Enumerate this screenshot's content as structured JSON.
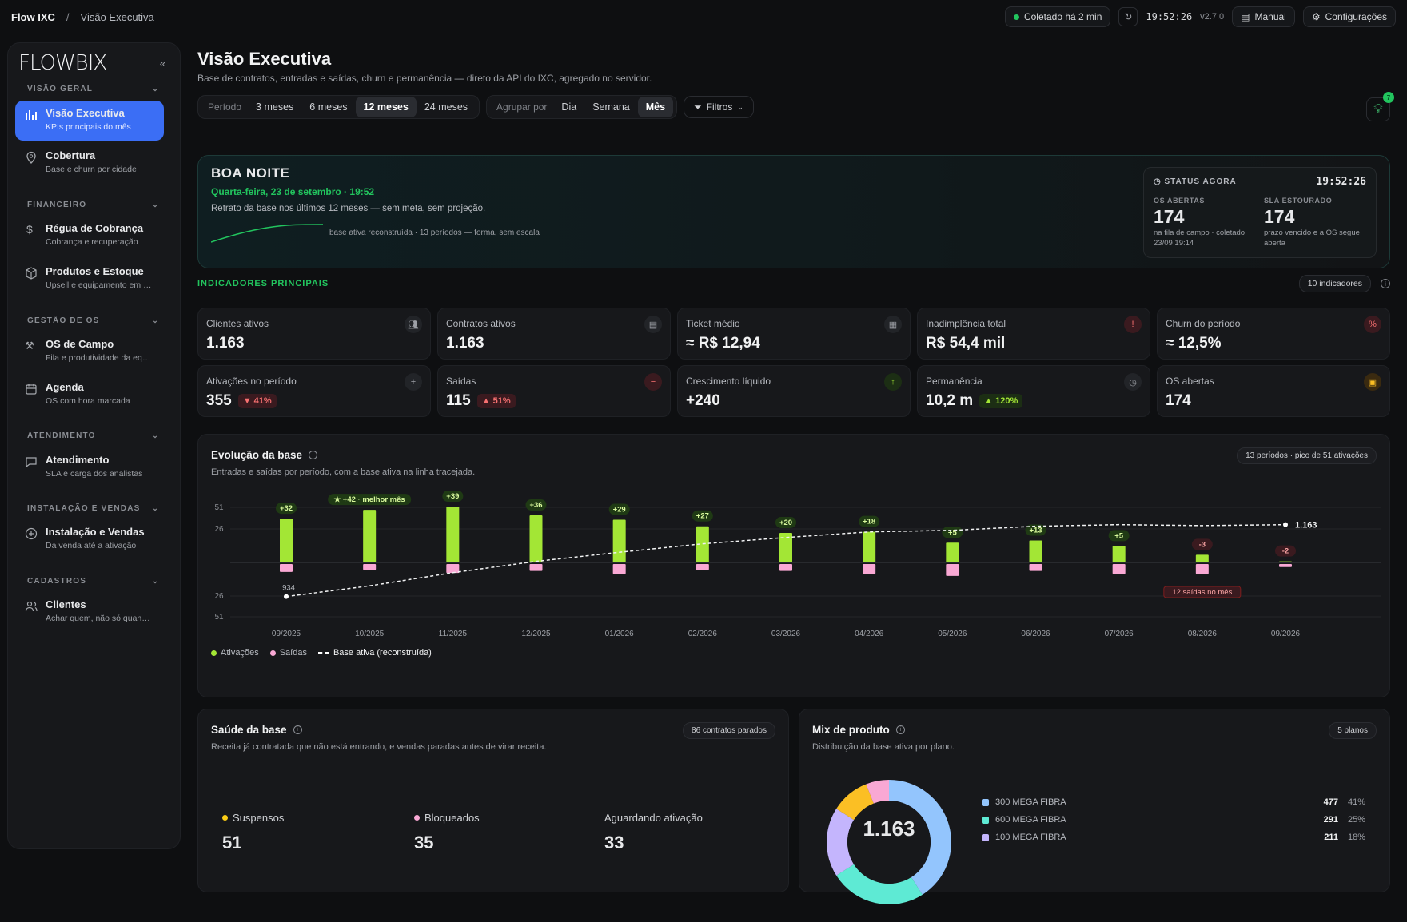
{
  "topbar": {
    "app": "Flow IXC",
    "sep": "/",
    "page": "Visão Executiva",
    "collected": "Coletado há 2 min",
    "clock": "19:52:26",
    "version": "v2.7.0",
    "manual": "Manual",
    "settings": "Configurações"
  },
  "sidebar": {
    "logo": "FLOWBIX",
    "sections": [
      "VISÃO GERAL",
      "FINANCEIRO",
      "GESTÃO DE OS",
      "ATENDIMENTO",
      "INSTALAÇÃO E VENDAS",
      "CADASTROS"
    ],
    "items": [
      {
        "label": "Visão Executiva",
        "sub": "KPIs principais do mês",
        "icon": "bar-chart-icon",
        "active": true
      },
      {
        "label": "Cobertura",
        "sub": "Base e churn por cidade",
        "icon": "map-pin-icon"
      },
      {
        "label": "Régua de Cobrança",
        "sub": "Cobrança e recuperação",
        "icon": "dollar-icon"
      },
      {
        "label": "Produtos e Estoque",
        "sub": "Upsell e equipamento em …",
        "icon": "box-icon"
      },
      {
        "label": "OS de Campo",
        "sub": "Fila e produtividade da eq…",
        "icon": "wrench-icon"
      },
      {
        "label": "Agenda",
        "sub": "OS com hora marcada",
        "icon": "calendar-icon"
      },
      {
        "label": "Atendimento",
        "sub": "SLA e carga dos analistas",
        "icon": "chat-icon"
      },
      {
        "label": "Instalação e Vendas",
        "sub": "Da venda até a ativação",
        "icon": "plus-circle-icon"
      },
      {
        "label": "Clientes",
        "sub": "Achar quem, não só quan…",
        "icon": "users-icon"
      }
    ]
  },
  "header": {
    "title": "Visão Executiva",
    "subtitle": "Base de contratos, entradas e saídas, churn e permanência — direto da API do IXC, agregado no servidor."
  },
  "controls": {
    "period_label": "Período",
    "periods": [
      "3 meses",
      "6 meses",
      "12 meses",
      "24 meses"
    ],
    "period_selected": "12 meses",
    "group_label": "Agrupar por",
    "groups": [
      "Dia",
      "Semana",
      "Mês"
    ],
    "group_selected": "Mês",
    "filters": "Filtros",
    "tips_count": "7"
  },
  "hero": {
    "greeting": "BOA NOITE",
    "date": "Quarta-feira, 23 de setembro · 19:52",
    "desc": "Retrato da base nos últimos 12 meses — sem meta, sem projeção.",
    "spark_label": "base ativa reconstruída · 13 períodos — forma, sem escala",
    "status": {
      "title": "STATUS AGORA",
      "time": "19:52:26",
      "os_label": "OS ABERTAS",
      "os_value": "174",
      "os_sub": "na fila de campo · coletado 23/09 19:14",
      "sla_label": "SLA ESTOURADO",
      "sla_value": "174",
      "sla_sub": "prazo vencido e a OS segue aberta"
    }
  },
  "kpis": {
    "title": "INDICADORES PRINCIPAIS",
    "count": "10 indicadores",
    "items": [
      {
        "label": "Clientes ativos",
        "value": "1.163",
        "icon": "users-icon",
        "tone": ""
      },
      {
        "label": "Contratos ativos",
        "value": "1.163",
        "icon": "document-icon",
        "tone": ""
      },
      {
        "label": "Ticket médio",
        "value": "≈ R$ 12,94",
        "icon": "calculator-icon",
        "tone": ""
      },
      {
        "label": "Inadimplência total",
        "value": "R$ 54,4 mil",
        "icon": "alert-icon",
        "tone": "red"
      },
      {
        "label": "Churn do período",
        "value": "≈ 12,5%",
        "icon": "percent-icon",
        "tone": "red"
      },
      {
        "label": "Ativações no período",
        "value": "355",
        "delta": "▼ 41%",
        "delta_dir": "dn",
        "icon": "plus-circle-icon",
        "tone": ""
      },
      {
        "label": "Saídas",
        "value": "115",
        "delta": "▲ 51%",
        "delta_dir": "dn",
        "icon": "minus-circle-icon",
        "tone": "red"
      },
      {
        "label": "Crescimento líquido",
        "value": "+240",
        "icon": "arrow-up-icon",
        "tone": "green"
      },
      {
        "label": "Permanência",
        "value": "10,2 m",
        "delta": "▲ 120%",
        "delta_dir": "up",
        "icon": "clock-icon",
        "tone": ""
      },
      {
        "label": "OS abertas",
        "value": "174",
        "icon": "clipboard-icon",
        "tone": "amber"
      }
    ]
  },
  "evolution": {
    "title": "Evolução da base",
    "subtitle": "Entradas e saídas por período, com a base ativa na linha tracejada.",
    "badge": "13 períodos · pico de 51 ativações",
    "legend": [
      "Ativações",
      "Saídas",
      "Base ativa (reconstruída)"
    ],
    "best_label": "★ +42 · melhor mês",
    "exits_label": "12 saídas no mês"
  },
  "chart_data": {
    "type": "bar",
    "categories": [
      "09/2025",
      "10/2025",
      "11/2025",
      "12/2025",
      "01/2026",
      "02/2026",
      "03/2026",
      "04/2026",
      "05/2026",
      "06/2026",
      "07/2026",
      "08/2026",
      "09/2026"
    ],
    "series": [
      {
        "name": "Ativações",
        "values": [
          40,
          48,
          51,
          43,
          39,
          33,
          27,
          28,
          18,
          20,
          15,
          7,
          1
        ]
      },
      {
        "name": "Saídas",
        "values": [
          8,
          6,
          9,
          7,
          10,
          6,
          7,
          10,
          12,
          7,
          10,
          10,
          3
        ]
      },
      {
        "name": "Base ativa (reconstruída)",
        "values": [
          934,
          968,
          1010,
          1046,
          1075,
          1102,
          1122,
          1140,
          1145,
          1158,
          1163,
          1160,
          1163
        ]
      }
    ],
    "net_labels": [
      "+32",
      "+42",
      "+39",
      "+36",
      "+29",
      "+27",
      "+20",
      "+18",
      "+5",
      "+13",
      "+5",
      "-3",
      "-2"
    ],
    "base_start_label": "934",
    "base_end_label": "1.163",
    "yticks_top": [
      "51",
      "26"
    ],
    "yticks_bottom": [
      "26",
      "51"
    ]
  },
  "health": {
    "title": "Saúde da base",
    "subtitle": "Receita já contratada que não está entrando, e vendas paradas antes de virar receita.",
    "badge": "86 contratos parados",
    "items": [
      {
        "label": "Suspensos",
        "value": "51",
        "color": "#facc15"
      },
      {
        "label": "Bloqueados",
        "value": "35",
        "color": "#f9a8d4"
      },
      {
        "label": "Aguardando ativação",
        "value": "33",
        "color": ""
      }
    ]
  },
  "mix": {
    "title": "Mix de produto",
    "subtitle": "Distribuição da base ativa por plano.",
    "badge": "5 planos",
    "center": "1.163",
    "items": [
      {
        "label": "300 MEGA FIBRA",
        "value": "477",
        "pct": "41%",
        "color": "#93c5fd"
      },
      {
        "label": "600 MEGA FIBRA",
        "value": "291",
        "pct": "25%",
        "color": "#5eead4"
      },
      {
        "label": "100 MEGA FIBRA",
        "value": "211",
        "pct": "18%",
        "color": "#c4b5fd"
      }
    ],
    "donut": [
      {
        "pct": 41,
        "color": "#93c5fd"
      },
      {
        "pct": 25,
        "color": "#5eead4"
      },
      {
        "pct": 18,
        "color": "#c4b5fd"
      },
      {
        "pct": 10,
        "color": "#fbbf24"
      },
      {
        "pct": 6,
        "color": "#f9a8d4"
      }
    ]
  }
}
